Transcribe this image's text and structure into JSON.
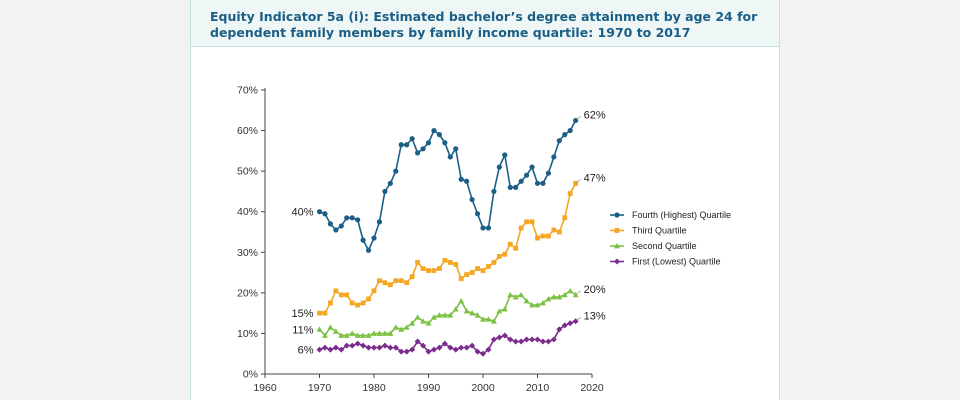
{
  "page": {
    "title": "Equity Indicator 5a (i): Estimated bachelor’s degree attainment by age 24 for dependent family members by family income quartile: 1970 to 2017"
  },
  "chart_data": {
    "type": "line",
    "title": "Equity Indicator 5a (i): Estimated bachelor’s degree attainment by age 24 for dependent family members by family income quartile: 1970 to 2017",
    "xlabel": "",
    "ylabel": "",
    "xlim": [
      1960,
      2020
    ],
    "ylim": [
      0,
      70
    ],
    "x_ticks": [
      1960,
      1970,
      1980,
      1990,
      2000,
      2010,
      2020
    ],
    "y_ticks": [
      0,
      10,
      20,
      30,
      40,
      50,
      60,
      70
    ],
    "y_tick_labels": [
      "0%",
      "10%",
      "20%",
      "30%",
      "40%",
      "50%",
      "60%",
      "70%"
    ],
    "grid": false,
    "legend": "right",
    "x": [
      1970,
      1971,
      1972,
      1973,
      1974,
      1975,
      1976,
      1977,
      1978,
      1979,
      1980,
      1981,
      1982,
      1983,
      1984,
      1985,
      1986,
      1987,
      1988,
      1989,
      1990,
      1991,
      1992,
      1993,
      1994,
      1995,
      1996,
      1997,
      1998,
      1999,
      2000,
      2001,
      2002,
      2003,
      2004,
      2005,
      2006,
      2007,
      2008,
      2009,
      2010,
      2011,
      2012,
      2013,
      2014,
      2015,
      2016,
      2017
    ],
    "series": [
      {
        "name": "Fourth (Highest) Quartile",
        "color": "#1b5e86",
        "marker": "circle",
        "start_label": "40%",
        "end_label": "62%",
        "values": [
          40,
          39.5,
          37,
          35.5,
          36.5,
          38.5,
          38.5,
          38,
          33,
          30.5,
          33.5,
          37.5,
          45,
          47,
          50,
          56.5,
          56.5,
          58,
          54.5,
          55.5,
          57,
          60,
          59,
          57,
          53.5,
          55.5,
          48,
          47.5,
          43,
          39.5,
          36,
          36,
          45,
          51,
          54,
          46,
          46,
          47.5,
          49,
          51,
          47,
          47,
          49.5,
          53.5,
          57.5,
          59,
          60,
          62.5
        ]
      },
      {
        "name": "Third Quartile",
        "color": "#f5a623",
        "marker": "square",
        "start_label": "15%",
        "end_label": "47%",
        "values": [
          15,
          15,
          17.5,
          20.5,
          19.5,
          19.5,
          17.5,
          17,
          17.5,
          18.5,
          20.5,
          23,
          22.5,
          22,
          23,
          23,
          22.5,
          24,
          27.5,
          26,
          25.5,
          25.5,
          26,
          28,
          27.5,
          27,
          23.5,
          24.5,
          25,
          26,
          25.5,
          26.5,
          27.5,
          29,
          29.5,
          32,
          31,
          36,
          37.5,
          37.5,
          33.5,
          34,
          34,
          35.5,
          35,
          38.5,
          44.5,
          47
        ]
      },
      {
        "name": "Second Quartile",
        "color": "#7cc142",
        "marker": "triangle",
        "start_label": "11%",
        "end_label": "20%",
        "values": [
          11,
          9.5,
          11.5,
          10.5,
          9.5,
          9.5,
          10,
          9.5,
          9.5,
          9.5,
          10,
          10,
          10,
          10,
          11.5,
          11,
          11.5,
          12.5,
          14,
          13,
          12.5,
          14,
          14.5,
          14.5,
          14.5,
          16,
          18,
          15.5,
          15,
          14.5,
          13.5,
          13.5,
          13,
          15.5,
          16,
          19.5,
          19,
          19.5,
          18,
          17,
          17,
          17.5,
          18.5,
          19,
          19,
          19.5,
          20.5,
          19.5
        ]
      },
      {
        "name": "First (Lowest) Quartile",
        "color": "#7b2d8e",
        "marker": "diamond",
        "start_label": "6%",
        "end_label": "13%",
        "values": [
          6,
          6.5,
          6,
          6.5,
          6,
          7,
          7,
          7.5,
          7,
          6.5,
          6.5,
          6.5,
          7,
          6.5,
          6.5,
          5.5,
          5.5,
          6,
          8,
          7,
          5.5,
          6,
          6.5,
          7.5,
          6.5,
          6,
          6.5,
          6.5,
          7,
          5.5,
          5,
          6,
          8.5,
          9,
          9.5,
          8.5,
          8,
          8,
          8.5,
          8.5,
          8.5,
          8,
          8,
          8.5,
          11,
          12,
          12.5,
          13
        ]
      }
    ]
  }
}
